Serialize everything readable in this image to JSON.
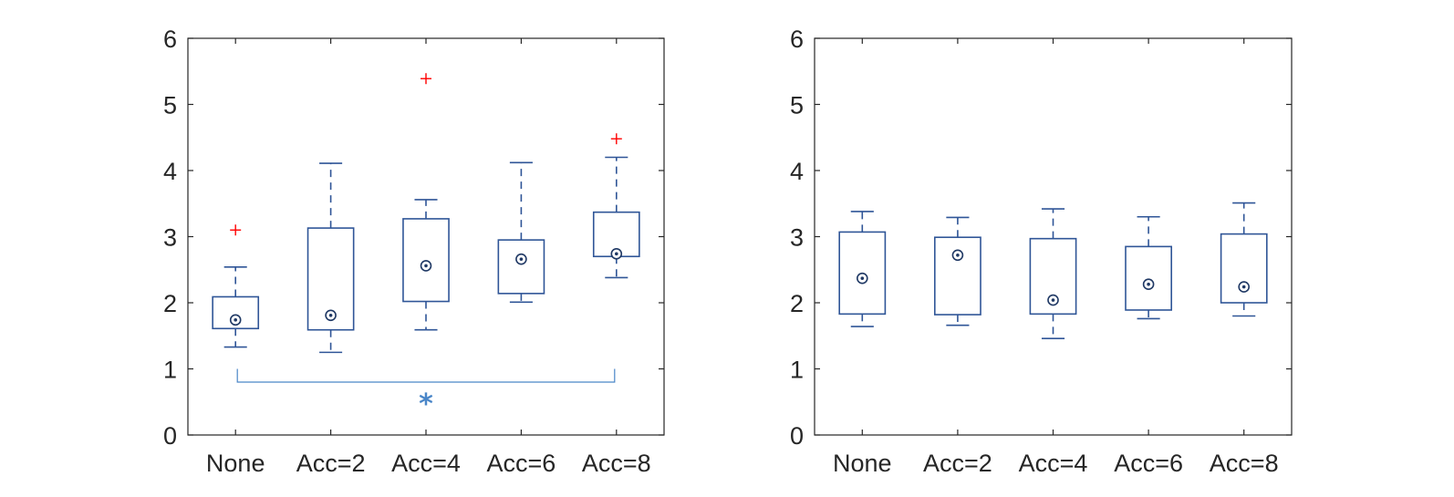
{
  "chart_data": [
    {
      "type": "box",
      "title": "",
      "xlabel": "",
      "ylabel": "",
      "ylim": [
        0,
        6
      ],
      "yticks": [
        0,
        1,
        2,
        3,
        4,
        5,
        6
      ],
      "categories": [
        "None",
        "Acc=2",
        "Acc=4",
        "Acc=6",
        "Acc=8"
      ],
      "boxes": [
        {
          "whisker_low": 1.33,
          "q1": 1.61,
          "median": 1.74,
          "q3": 2.09,
          "whisker_high": 2.54,
          "outliers": [
            3.1
          ]
        },
        {
          "whisker_low": 1.25,
          "q1": 1.59,
          "median": 1.81,
          "q3": 3.13,
          "whisker_high": 4.11,
          "outliers": []
        },
        {
          "whisker_low": 1.59,
          "q1": 2.02,
          "median": 2.56,
          "q3": 3.27,
          "whisker_high": 3.56,
          "outliers": [
            5.39
          ]
        },
        {
          "whisker_low": 2.01,
          "q1": 2.14,
          "median": 2.66,
          "q3": 2.95,
          "whisker_high": 4.12,
          "outliers": []
        },
        {
          "whisker_low": 2.38,
          "q1": 2.7,
          "median": 2.74,
          "q3": 3.37,
          "whisker_high": 4.2,
          "outliers": [
            4.48
          ]
        }
      ],
      "significance": {
        "from": "None",
        "to": "Acc=8",
        "label": "*"
      },
      "grid": false
    },
    {
      "type": "box",
      "title": "",
      "xlabel": "",
      "ylabel": "",
      "ylim": [
        0,
        6
      ],
      "yticks": [
        0,
        1,
        2,
        3,
        4,
        5,
        6
      ],
      "categories": [
        "None",
        "Acc=2",
        "Acc=4",
        "Acc=6",
        "Acc=8"
      ],
      "boxes": [
        {
          "whisker_low": 1.64,
          "q1": 1.83,
          "median": 2.37,
          "q3": 3.07,
          "whisker_high": 3.38,
          "outliers": []
        },
        {
          "whisker_low": 1.66,
          "q1": 1.82,
          "median": 2.72,
          "q3": 2.99,
          "whisker_high": 3.29,
          "outliers": []
        },
        {
          "whisker_low": 1.46,
          "q1": 1.83,
          "median": 2.04,
          "q3": 2.97,
          "whisker_high": 3.42,
          "outliers": []
        },
        {
          "whisker_low": 1.76,
          "q1": 1.89,
          "median": 2.28,
          "q3": 2.85,
          "whisker_high": 3.3,
          "outliers": []
        },
        {
          "whisker_low": 1.8,
          "q1": 2.0,
          "median": 2.24,
          "q3": 3.04,
          "whisker_high": 3.51,
          "outliers": []
        }
      ],
      "grid": false
    }
  ]
}
